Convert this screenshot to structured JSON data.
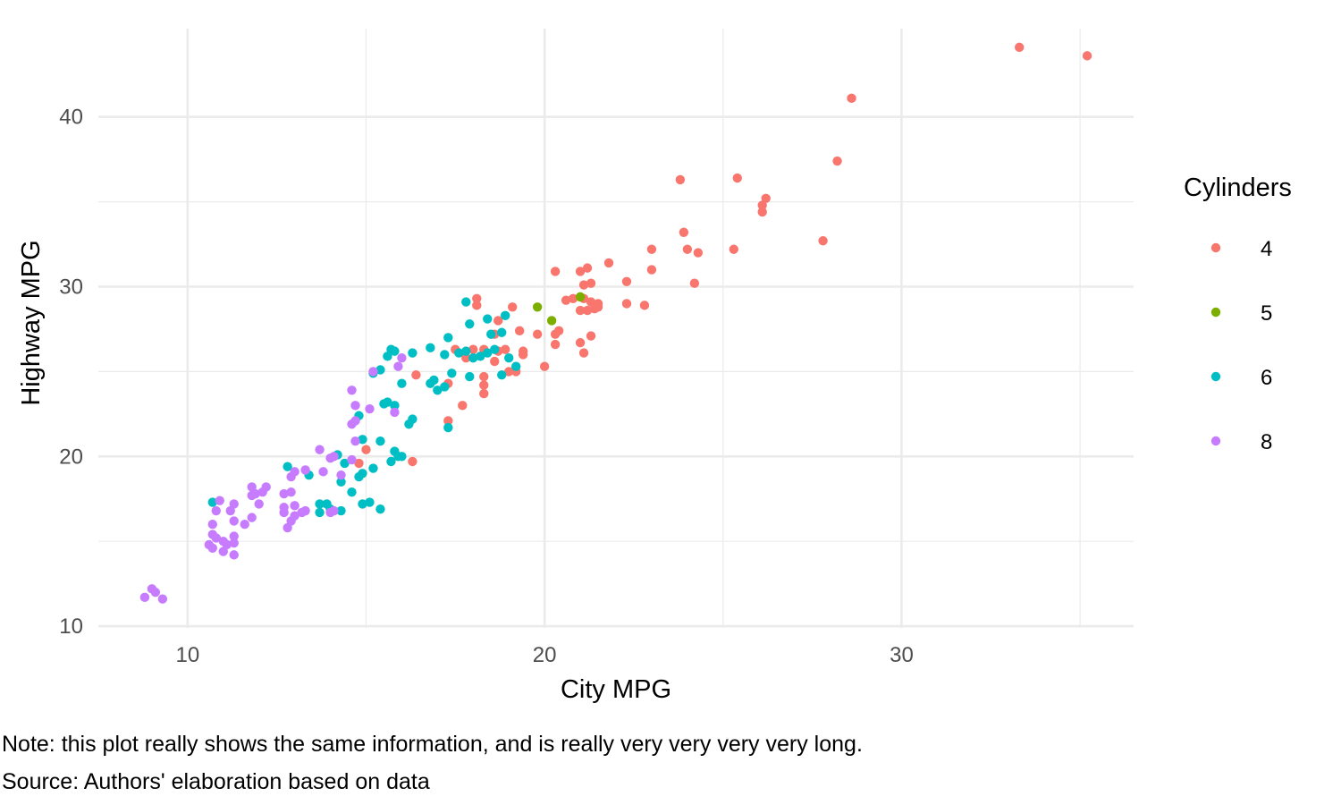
{
  "chart_data": {
    "type": "scatter",
    "xlabel": "City MPG",
    "ylabel": "Highway MPG",
    "xlim": [
      7.5,
      36.5
    ],
    "ylim": [
      9.9,
      45.2
    ],
    "x_ticks": [
      10,
      20,
      30
    ],
    "y_ticks": [
      10,
      20,
      30,
      40
    ],
    "grid": true,
    "legend": {
      "title": "Cylinders",
      "position": "right"
    },
    "series": [
      {
        "name": "4",
        "color": "#F8766D",
        "points": [
          [
            33.3,
            44.1
          ],
          [
            35.2,
            43.6
          ],
          [
            28.6,
            41.1
          ],
          [
            28.2,
            37.4
          ],
          [
            23.8,
            36.3
          ],
          [
            25.4,
            36.4
          ],
          [
            26.2,
            35.2
          ],
          [
            26.1,
            34.8
          ],
          [
            26.1,
            34.4
          ],
          [
            23.9,
            33.2
          ],
          [
            27.8,
            32.7
          ],
          [
            23.0,
            32.2
          ],
          [
            24.0,
            32.2
          ],
          [
            24.3,
            32.0
          ],
          [
            25.3,
            32.2
          ],
          [
            24.2,
            30.2
          ],
          [
            21.8,
            31.4
          ],
          [
            20.3,
            30.9
          ],
          [
            21.0,
            30.9
          ],
          [
            21.2,
            31.1
          ],
          [
            21.1,
            30.1
          ],
          [
            21.3,
            30.2
          ],
          [
            22.3,
            30.3
          ],
          [
            23.0,
            31.0
          ],
          [
            20.6,
            29.2
          ],
          [
            20.8,
            29.3
          ],
          [
            21.1,
            29.3
          ],
          [
            21.3,
            29.1
          ],
          [
            21.5,
            29.0
          ],
          [
            22.3,
            29.0
          ],
          [
            22.8,
            28.9
          ],
          [
            21.2,
            28.6
          ],
          [
            21.4,
            28.7
          ],
          [
            21.0,
            28.6
          ],
          [
            21.5,
            28.8
          ],
          [
            18.1,
            29.3
          ],
          [
            18.1,
            28.9
          ],
          [
            19.1,
            28.8
          ],
          [
            18.7,
            28.0
          ],
          [
            18.6,
            27.2
          ],
          [
            19.3,
            27.4
          ],
          [
            19.8,
            27.2
          ],
          [
            20.3,
            27.2
          ],
          [
            20.4,
            27.4
          ],
          [
            20.3,
            26.6
          ],
          [
            21.0,
            26.7
          ],
          [
            21.1,
            26.1
          ],
          [
            21.3,
            27.1
          ],
          [
            18.3,
            26.3
          ],
          [
            18.7,
            26.2
          ],
          [
            18.9,
            26.3
          ],
          [
            19.4,
            26.2
          ],
          [
            19.4,
            26.0
          ],
          [
            18.6,
            25.6
          ],
          [
            19.0,
            25.0
          ],
          [
            19.2,
            25.0
          ],
          [
            20.0,
            25.3
          ],
          [
            17.8,
            25.8
          ],
          [
            17.5,
            26.3
          ],
          [
            18.0,
            26.3
          ],
          [
            18.3,
            24.7
          ],
          [
            18.3,
            24.2
          ],
          [
            18.3,
            23.7
          ],
          [
            17.3,
            24.3
          ],
          [
            17.7,
            23.0
          ],
          [
            16.4,
            24.8
          ],
          [
            17.3,
            22.1
          ],
          [
            15.0,
            20.4
          ],
          [
            14.8,
            19.6
          ],
          [
            16.3,
            19.7
          ]
        ]
      },
      {
        "name": "5",
        "color": "#7CAE00",
        "points": [
          [
            19.8,
            28.8
          ],
          [
            21.0,
            29.4
          ],
          [
            20.2,
            28.0
          ]
        ]
      },
      {
        "name": "6",
        "color": "#00BFC4",
        "points": [
          [
            17.8,
            29.1
          ],
          [
            18.4,
            28.1
          ],
          [
            18.9,
            28.3
          ],
          [
            17.9,
            27.8
          ],
          [
            18.5,
            27.2
          ],
          [
            18.8,
            27.3
          ],
          [
            17.3,
            27.0
          ],
          [
            16.8,
            26.4
          ],
          [
            16.3,
            26.1
          ],
          [
            15.7,
            26.3
          ],
          [
            15.8,
            26.2
          ],
          [
            15.6,
            25.9
          ],
          [
            17.2,
            26.0
          ],
          [
            17.6,
            26.1
          ],
          [
            17.8,
            26.2
          ],
          [
            18.0,
            25.8
          ],
          [
            18.2,
            25.9
          ],
          [
            18.4,
            26.1
          ],
          [
            18.6,
            26.3
          ],
          [
            19.0,
            25.8
          ],
          [
            19.2,
            25.3
          ],
          [
            18.8,
            24.8
          ],
          [
            17.9,
            24.7
          ],
          [
            17.4,
            24.9
          ],
          [
            16.9,
            24.5
          ],
          [
            17.0,
            23.9
          ],
          [
            17.2,
            24.1
          ],
          [
            16.8,
            24.3
          ],
          [
            15.4,
            25.1
          ],
          [
            16.0,
            24.3
          ],
          [
            15.2,
            24.9
          ],
          [
            15.6,
            23.2
          ],
          [
            15.8,
            23.0
          ],
          [
            15.5,
            23.1
          ],
          [
            14.8,
            22.4
          ],
          [
            16.2,
            21.9
          ],
          [
            16.3,
            22.2
          ],
          [
            17.3,
            21.7
          ],
          [
            14.9,
            21.0
          ],
          [
            15.4,
            20.9
          ],
          [
            15.8,
            20.3
          ],
          [
            15.9,
            20.0
          ],
          [
            16.0,
            20.0
          ],
          [
            15.7,
            19.7
          ],
          [
            14.4,
            19.6
          ],
          [
            14.9,
            19.0
          ],
          [
            14.8,
            18.8
          ],
          [
            15.2,
            19.3
          ],
          [
            12.8,
            19.4
          ],
          [
            13.4,
            18.9
          ],
          [
            14.2,
            20.1
          ],
          [
            14.3,
            18.5
          ],
          [
            14.6,
            17.9
          ],
          [
            13.7,
            17.2
          ],
          [
            13.9,
            17.2
          ],
          [
            14.0,
            16.9
          ],
          [
            14.3,
            16.8
          ],
          [
            13.7,
            16.7
          ],
          [
            14.9,
            17.2
          ],
          [
            15.1,
            17.3
          ],
          [
            15.4,
            16.9
          ],
          [
            10.7,
            17.3
          ]
        ]
      },
      {
        "name": "8",
        "color": "#C77CFF",
        "points": [
          [
            14.6,
            23.9
          ],
          [
            14.7,
            23.0
          ],
          [
            15.1,
            22.8
          ],
          [
            14.7,
            22.1
          ],
          [
            14.6,
            21.9
          ],
          [
            15.8,
            22.6
          ],
          [
            15.9,
            25.3
          ],
          [
            16.0,
            25.8
          ],
          [
            15.2,
            25.0
          ],
          [
            14.7,
            20.9
          ],
          [
            13.7,
            20.4
          ],
          [
            14.0,
            19.9
          ],
          [
            14.1,
            20.0
          ],
          [
            14.6,
            19.8
          ],
          [
            13.3,
            19.2
          ],
          [
            13.8,
            19.1
          ],
          [
            13.0,
            19.1
          ],
          [
            14.3,
            18.9
          ],
          [
            12.9,
            18.8
          ],
          [
            11.8,
            18.2
          ],
          [
            12.2,
            18.2
          ],
          [
            12.1,
            17.9
          ],
          [
            11.9,
            17.8
          ],
          [
            11.8,
            17.7
          ],
          [
            12.7,
            17.8
          ],
          [
            12.9,
            17.9
          ],
          [
            12.0,
            17.2
          ],
          [
            12.7,
            17.0
          ],
          [
            12.7,
            16.7
          ],
          [
            13.2,
            16.7
          ],
          [
            13.0,
            16.5
          ],
          [
            13.0,
            17.1
          ],
          [
            13.3,
            16.8
          ],
          [
            14.0,
            16.7
          ],
          [
            14.1,
            16.8
          ],
          [
            12.9,
            16.2
          ],
          [
            12.8,
            15.8
          ],
          [
            11.3,
            17.2
          ],
          [
            11.2,
            16.8
          ],
          [
            10.9,
            17.4
          ],
          [
            10.8,
            16.8
          ],
          [
            11.8,
            16.4
          ],
          [
            11.3,
            16.2
          ],
          [
            10.7,
            16.0
          ],
          [
            11.6,
            16.0
          ],
          [
            10.7,
            15.4
          ],
          [
            10.8,
            15.2
          ],
          [
            11.0,
            15.0
          ],
          [
            10.6,
            14.8
          ],
          [
            10.7,
            14.6
          ],
          [
            11.1,
            14.8
          ],
          [
            11.3,
            14.9
          ],
          [
            11.3,
            15.3
          ],
          [
            11.0,
            14.4
          ],
          [
            11.3,
            14.2
          ],
          [
            9.0,
            12.2
          ],
          [
            8.8,
            11.7
          ],
          [
            9.1,
            12.0
          ],
          [
            9.3,
            11.6
          ]
        ]
      }
    ]
  },
  "captions": {
    "note": "Note: this plot really shows the same information, and is really very very very very long.",
    "source": "Source: Authors' elaboration based on data"
  }
}
